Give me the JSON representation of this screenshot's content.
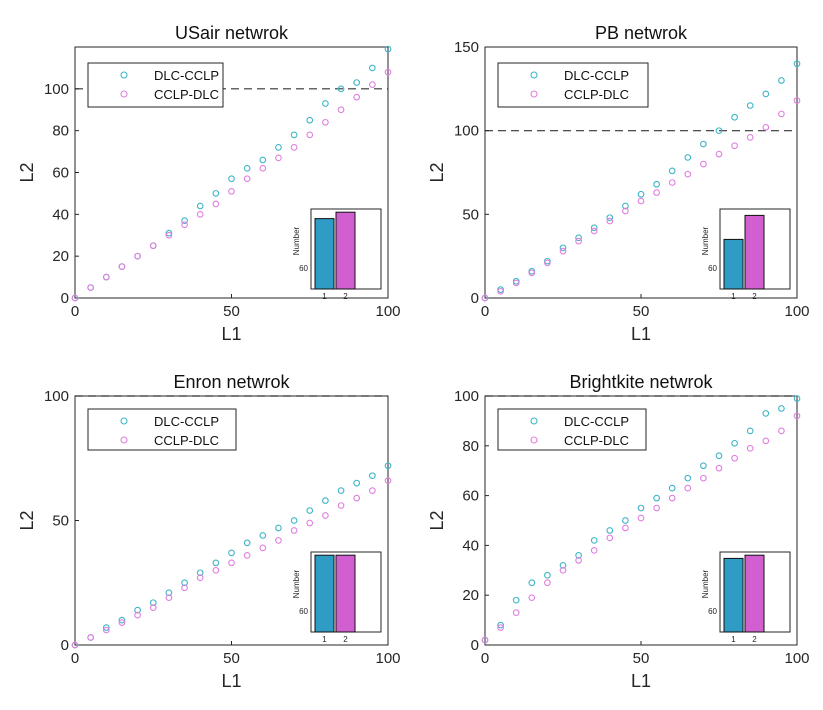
{
  "colors": {
    "dlc_cclp": "#3eb5c8",
    "ccl_pdlc": "#e07fe0",
    "bar1": "#2e9cc4",
    "bar2": "#d25fd0"
  },
  "chart_data": [
    {
      "type": "scatter",
      "title": "USair netwrok",
      "xlabel": "L1",
      "ylabel": "L2",
      "xlim": [
        0,
        100
      ],
      "ylim": [
        0,
        120
      ],
      "xticks": [
        "0",
        "50",
        "100"
      ],
      "yticks": [
        "0",
        "20",
        "40",
        "60",
        "80",
        "100"
      ],
      "ref_line": 100,
      "legend": [
        "DLC-CCLP",
        "CCLP-DLC"
      ],
      "series": [
        {
          "name": "DLC-CCLP",
          "x": [
            0,
            5,
            10,
            15,
            20,
            25,
            30,
            35,
            40,
            45,
            50,
            55,
            60,
            65,
            70,
            75,
            80,
            85,
            90,
            95,
            100
          ],
          "y": [
            0,
            5,
            10,
            15,
            20,
            25,
            31,
            37,
            44,
            50,
            57,
            62,
            66,
            72,
            78,
            85,
            93,
            100,
            103,
            110,
            119
          ]
        },
        {
          "name": "CCLP-DLC",
          "x": [
            0,
            5,
            10,
            15,
            20,
            25,
            30,
            35,
            40,
            45,
            50,
            55,
            60,
            65,
            70,
            75,
            80,
            85,
            90,
            95,
            100
          ],
          "y": [
            0,
            5,
            10,
            15,
            20,
            25,
            30,
            35,
            40,
            45,
            51,
            57,
            62,
            67,
            72,
            78,
            84,
            90,
            96,
            102,
            108
          ]
        }
      ],
      "inset": {
        "ylabel": "Number",
        "ytick": "60",
        "categories": [
          "1",
          "2"
        ],
        "values": [
          0.88,
          0.96
        ]
      }
    },
    {
      "type": "scatter",
      "title": "PB netwrok",
      "xlabel": "L1",
      "ylabel": "L2",
      "xlim": [
        0,
        100
      ],
      "ylim": [
        0,
        150
      ],
      "xticks": [
        "0",
        "50",
        "100"
      ],
      "yticks": [
        "0",
        "50",
        "100",
        "150"
      ],
      "ref_line": 100,
      "legend": [
        "DLC-CCLP",
        "CCLP-DLC"
      ],
      "series": [
        {
          "name": "DLC-CCLP",
          "x": [
            0,
            5,
            10,
            15,
            20,
            25,
            30,
            35,
            40,
            45,
            50,
            55,
            60,
            65,
            70,
            75,
            80,
            85,
            90,
            95,
            100
          ],
          "y": [
            0,
            5,
            10,
            16,
            22,
            30,
            36,
            42,
            48,
            55,
            62,
            68,
            76,
            84,
            92,
            100,
            108,
            115,
            122,
            130,
            140
          ]
        },
        {
          "name": "CCLP-DLC",
          "x": [
            0,
            5,
            10,
            15,
            20,
            25,
            30,
            35,
            40,
            45,
            50,
            55,
            60,
            65,
            70,
            75,
            80,
            85,
            90,
            95,
            100
          ],
          "y": [
            0,
            4,
            9,
            15,
            21,
            28,
            34,
            40,
            46,
            52,
            58,
            63,
            69,
            74,
            80,
            86,
            91,
            96,
            102,
            110,
            118
          ]
        }
      ],
      "inset": {
        "ylabel": "Number",
        "ytick": "60",
        "categories": [
          "1",
          "2"
        ],
        "values": [
          0.62,
          0.92
        ]
      }
    },
    {
      "type": "scatter",
      "title": "Enron netwrok",
      "xlabel": "L1",
      "ylabel": "L2",
      "xlim": [
        0,
        100
      ],
      "ylim": [
        0,
        100
      ],
      "xticks": [
        "0",
        "50",
        "100"
      ],
      "yticks": [
        "0",
        "50",
        "100"
      ],
      "ref_line": 100,
      "legend": [
        "DLC-CCLP",
        "CCLP-DLC"
      ],
      "series": [
        {
          "name": "DLC-CCLP",
          "x": [
            0,
            5,
            10,
            15,
            20,
            25,
            30,
            35,
            40,
            45,
            50,
            55,
            60,
            65,
            70,
            75,
            80,
            85,
            90,
            95,
            100
          ],
          "y": [
            0,
            3,
            7,
            10,
            14,
            17,
            21,
            25,
            29,
            33,
            37,
            41,
            44,
            47,
            50,
            54,
            58,
            62,
            65,
            68,
            72
          ]
        },
        {
          "name": "CCLP-DLC",
          "x": [
            0,
            5,
            10,
            15,
            20,
            25,
            30,
            35,
            40,
            45,
            50,
            55,
            60,
            65,
            70,
            75,
            80,
            85,
            90,
            95,
            100
          ],
          "y": [
            0,
            3,
            6,
            9,
            12,
            15,
            19,
            23,
            27,
            30,
            33,
            36,
            39,
            42,
            46,
            49,
            52,
            56,
            59,
            62,
            66
          ]
        }
      ],
      "inset": {
        "ylabel": "Number",
        "ytick": "60",
        "categories": [
          "1",
          "2"
        ],
        "values": [
          0.96,
          0.96
        ]
      }
    },
    {
      "type": "scatter",
      "title": "Brightkite netwrok",
      "xlabel": "L1",
      "ylabel": "L2",
      "xlim": [
        0,
        100
      ],
      "ylim": [
        0,
        100
      ],
      "xticks": [
        "0",
        "50",
        "100"
      ],
      "yticks": [
        "0",
        "20",
        "40",
        "60",
        "80",
        "100"
      ],
      "ref_line": 100,
      "legend": [
        "DLC-CCLP",
        "CCLP-DLC"
      ],
      "series": [
        {
          "name": "DLC-CCLP",
          "x": [
            0,
            5,
            10,
            15,
            20,
            25,
            30,
            35,
            40,
            45,
            50,
            55,
            60,
            65,
            70,
            75,
            80,
            85,
            90,
            95,
            100
          ],
          "y": [
            2,
            8,
            18,
            25,
            28,
            32,
            36,
            42,
            46,
            50,
            55,
            59,
            63,
            67,
            72,
            76,
            81,
            86,
            93,
            95,
            99
          ]
        },
        {
          "name": "CCLP-DLC",
          "x": [
            0,
            5,
            10,
            15,
            20,
            25,
            30,
            35,
            40,
            45,
            50,
            55,
            60,
            65,
            70,
            75,
            80,
            85,
            90,
            95,
            100
          ],
          "y": [
            2,
            7,
            13,
            19,
            25,
            30,
            34,
            38,
            43,
            47,
            51,
            55,
            59,
            63,
            67,
            71,
            75,
            79,
            82,
            86,
            92
          ]
        }
      ],
      "inset": {
        "ylabel": "Number",
        "ytick": "60",
        "categories": [
          "1",
          "2"
        ],
        "values": [
          0.92,
          0.96
        ]
      }
    }
  ]
}
